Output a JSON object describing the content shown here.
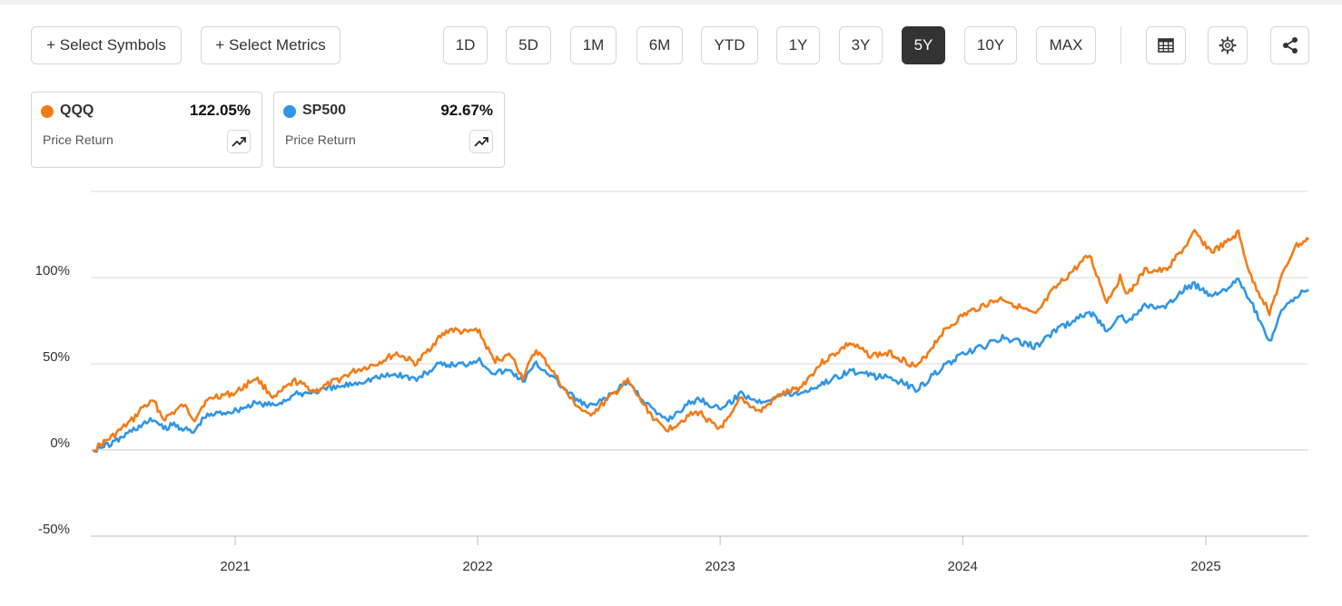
{
  "toolbar": {
    "select_symbols": "+ Select Symbols",
    "select_metrics": "+ Select Metrics",
    "ranges": [
      "1D",
      "5D",
      "1M",
      "6M",
      "YTD",
      "1Y",
      "3Y",
      "5Y",
      "10Y",
      "MAX"
    ],
    "active_range": "5Y"
  },
  "legend": [
    {
      "symbol": "QQQ",
      "return": "122.05%",
      "metric": "Price Return",
      "color": "#f47b16"
    },
    {
      "symbol": "SP500",
      "return": "92.67%",
      "metric": "Price Return",
      "color": "#2f96e8"
    }
  ],
  "chart_data": {
    "type": "line",
    "title": "",
    "xlabel": "",
    "ylabel": "",
    "ylim": [
      -50,
      150
    ],
    "yticks": [
      "-50%",
      "0%",
      "50%",
      "100%"
    ],
    "xticks": [
      "2021",
      "2022",
      "2023",
      "2024",
      "2025"
    ],
    "grid": true,
    "series": [
      {
        "name": "QQQ",
        "color": "#f47b16",
        "points": [
          [
            "2020-06-01",
            0
          ],
          [
            "2020-07-01",
            8
          ],
          [
            "2020-08-01",
            18
          ],
          [
            "2020-08-15",
            25
          ],
          [
            "2020-09-01",
            28
          ],
          [
            "2020-09-15",
            18
          ],
          [
            "2020-10-01",
            22
          ],
          [
            "2020-10-15",
            26
          ],
          [
            "2020-11-01",
            18
          ],
          [
            "2020-11-15",
            27
          ],
          [
            "2020-12-01",
            31
          ],
          [
            "2021-01-01",
            33
          ],
          [
            "2021-02-01",
            42
          ],
          [
            "2021-03-01",
            30
          ],
          [
            "2021-03-15",
            35
          ],
          [
            "2021-04-01",
            40
          ],
          [
            "2021-05-01",
            34
          ],
          [
            "2021-06-01",
            40
          ],
          [
            "2021-07-01",
            46
          ],
          [
            "2021-08-01",
            50
          ],
          [
            "2021-09-01",
            56
          ],
          [
            "2021-10-01",
            50
          ],
          [
            "2021-11-01",
            64
          ],
          [
            "2021-11-20",
            70
          ],
          [
            "2021-12-15",
            68
          ],
          [
            "2022-01-01",
            70
          ],
          [
            "2022-01-25",
            52
          ],
          [
            "2022-02-20",
            55
          ],
          [
            "2022-03-10",
            42
          ],
          [
            "2022-03-30",
            58
          ],
          [
            "2022-04-20",
            48
          ],
          [
            "2022-05-20",
            30
          ],
          [
            "2022-06-15",
            20
          ],
          [
            "2022-07-01",
            24
          ],
          [
            "2022-08-01",
            35
          ],
          [
            "2022-08-15",
            40
          ],
          [
            "2022-09-01",
            30
          ],
          [
            "2022-09-30",
            15
          ],
          [
            "2022-10-15",
            12
          ],
          [
            "2022-11-15",
            20
          ],
          [
            "2022-12-01",
            22
          ],
          [
            "2022-12-28",
            12
          ],
          [
            "2023-01-15",
            18
          ],
          [
            "2023-02-01",
            30
          ],
          [
            "2023-03-01",
            22
          ],
          [
            "2023-04-01",
            32
          ],
          [
            "2023-05-01",
            36
          ],
          [
            "2023-06-01",
            50
          ],
          [
            "2023-07-15",
            62
          ],
          [
            "2023-08-15",
            55
          ],
          [
            "2023-09-15",
            56
          ],
          [
            "2023-10-25",
            48
          ],
          [
            "2023-12-01",
            68
          ],
          [
            "2024-01-01",
            78
          ],
          [
            "2024-02-01",
            84
          ],
          [
            "2024-03-01",
            88
          ],
          [
            "2024-04-20",
            78
          ],
          [
            "2024-05-15",
            92
          ],
          [
            "2024-06-15",
            104
          ],
          [
            "2024-07-10",
            113
          ],
          [
            "2024-08-05",
            86
          ],
          [
            "2024-08-25",
            100
          ],
          [
            "2024-09-06",
            90
          ],
          [
            "2024-10-01",
            104
          ],
          [
            "2024-11-01",
            104
          ],
          [
            "2024-12-01",
            118
          ],
          [
            "2024-12-15",
            126
          ],
          [
            "2025-01-10",
            115
          ],
          [
            "2025-02-01",
            120
          ],
          [
            "2025-02-19",
            126
          ],
          [
            "2025-03-10",
            100
          ],
          [
            "2025-04-07",
            80
          ],
          [
            "2025-04-25",
            100
          ],
          [
            "2025-05-15",
            118
          ],
          [
            "2025-06-05",
            122.05
          ]
        ]
      },
      {
        "name": "SP500",
        "color": "#2f96e8",
        "points": [
          [
            "2020-06-01",
            0
          ],
          [
            "2020-07-01",
            4
          ],
          [
            "2020-08-01",
            12
          ],
          [
            "2020-09-01",
            18
          ],
          [
            "2020-09-15",
            12
          ],
          [
            "2020-10-01",
            15
          ],
          [
            "2020-10-30",
            10
          ],
          [
            "2020-11-15",
            19
          ],
          [
            "2020-12-01",
            21
          ],
          [
            "2021-01-01",
            23
          ],
          [
            "2021-02-01",
            27
          ],
          [
            "2021-03-01",
            26
          ],
          [
            "2021-04-01",
            32
          ],
          [
            "2021-05-01",
            34
          ],
          [
            "2021-06-01",
            36
          ],
          [
            "2021-07-01",
            39
          ],
          [
            "2021-08-01",
            42
          ],
          [
            "2021-09-01",
            44
          ],
          [
            "2021-10-01",
            41
          ],
          [
            "2021-11-01",
            49
          ],
          [
            "2021-12-15",
            50
          ],
          [
            "2022-01-01",
            53
          ],
          [
            "2022-01-25",
            45
          ],
          [
            "2022-02-20",
            46
          ],
          [
            "2022-03-10",
            40
          ],
          [
            "2022-03-30",
            50
          ],
          [
            "2022-04-20",
            44
          ],
          [
            "2022-05-20",
            32
          ],
          [
            "2022-06-15",
            25
          ],
          [
            "2022-07-01",
            27
          ],
          [
            "2022-08-01",
            35
          ],
          [
            "2022-08-15",
            40
          ],
          [
            "2022-09-01",
            32
          ],
          [
            "2022-09-30",
            20
          ],
          [
            "2022-10-15",
            18
          ],
          [
            "2022-11-15",
            27
          ],
          [
            "2022-12-01",
            30
          ],
          [
            "2022-12-28",
            24
          ],
          [
            "2023-01-15",
            27
          ],
          [
            "2023-02-01",
            33
          ],
          [
            "2023-03-01",
            28
          ],
          [
            "2023-04-01",
            32
          ],
          [
            "2023-05-01",
            33
          ],
          [
            "2023-06-01",
            38
          ],
          [
            "2023-07-15",
            46
          ],
          [
            "2023-08-15",
            43
          ],
          [
            "2023-09-15",
            42
          ],
          [
            "2023-10-25",
            35
          ],
          [
            "2023-12-01",
            48
          ],
          [
            "2024-01-01",
            55
          ],
          [
            "2024-02-01",
            60
          ],
          [
            "2024-03-01",
            65
          ],
          [
            "2024-04-20",
            60
          ],
          [
            "2024-05-15",
            68
          ],
          [
            "2024-06-15",
            75
          ],
          [
            "2024-07-10",
            80
          ],
          [
            "2024-08-05",
            70
          ],
          [
            "2024-08-25",
            78
          ],
          [
            "2024-09-06",
            74
          ],
          [
            "2024-10-01",
            84
          ],
          [
            "2024-11-01",
            82
          ],
          [
            "2024-12-01",
            94
          ],
          [
            "2024-12-15",
            96
          ],
          [
            "2025-01-10",
            90
          ],
          [
            "2025-02-01",
            94
          ],
          [
            "2025-02-19",
            98
          ],
          [
            "2025-03-10",
            86
          ],
          [
            "2025-04-07",
            62
          ],
          [
            "2025-04-25",
            80
          ],
          [
            "2025-05-15",
            89
          ],
          [
            "2025-06-05",
            92.67
          ]
        ]
      }
    ]
  }
}
